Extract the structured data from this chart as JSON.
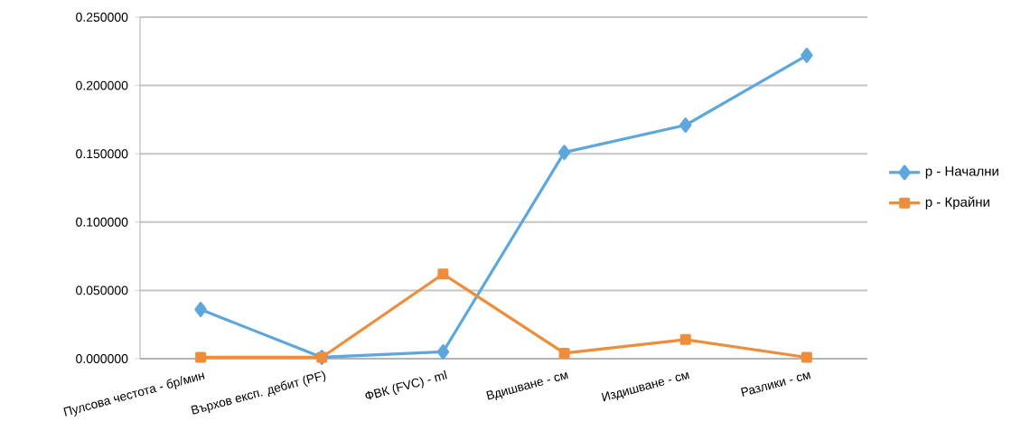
{
  "chart_data": {
    "type": "line",
    "categories": [
      "Пулсова честота - бр/мин",
      "Върхов експ. дебит (PF)",
      "ФВК (FVC) - ml",
      "Вдишване - см",
      "Издишване - см",
      "Разлики - см"
    ],
    "series": [
      {
        "name": "p - Начални",
        "color": "#5ea7dc",
        "marker": "diamond",
        "values": [
          0.036,
          0.001,
          0.005,
          0.151,
          0.171,
          0.222
        ]
      },
      {
        "name": "p - Крайни",
        "color": "#ee8d3a",
        "marker": "square",
        "values": [
          0.001,
          0.001,
          0.062,
          0.004,
          0.014,
          0.001
        ]
      }
    ],
    "ylim": [
      0,
      0.25
    ],
    "yticks": [
      {
        "value": 0,
        "label": "0.000000"
      },
      {
        "value": 0.05,
        "label": "0.050000"
      },
      {
        "value": 0.1,
        "label": "0.100000"
      },
      {
        "value": 0.15,
        "label": "0.150000"
      },
      {
        "value": 0.2,
        "label": "0.200000"
      },
      {
        "value": 0.25,
        "label": "0.250000"
      }
    ],
    "grid": "y",
    "legend": "right",
    "line_style": "solid"
  }
}
